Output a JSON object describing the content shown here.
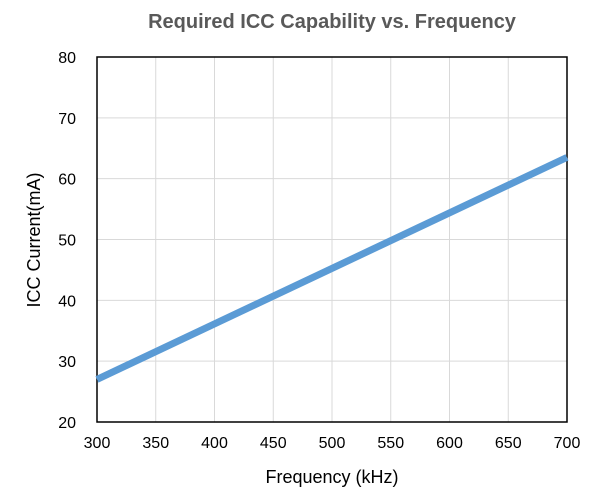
{
  "chart_data": {
    "type": "line",
    "title": "Required ICC Capability vs. Frequency",
    "xlabel": "Frequency (kHz)",
    "ylabel": "ICC Current(mA)",
    "xlim": [
      300,
      700
    ],
    "ylim": [
      20,
      80
    ],
    "x_ticks": [
      300,
      350,
      400,
      450,
      500,
      550,
      600,
      650,
      700
    ],
    "y_ticks": [
      20,
      30,
      40,
      50,
      60,
      70,
      80
    ],
    "grid": true,
    "legend": "none",
    "series": [
      {
        "color": "#5b9bd5",
        "x": [
          300,
          700
        ],
        "y": [
          27,
          63.5
        ]
      }
    ]
  }
}
